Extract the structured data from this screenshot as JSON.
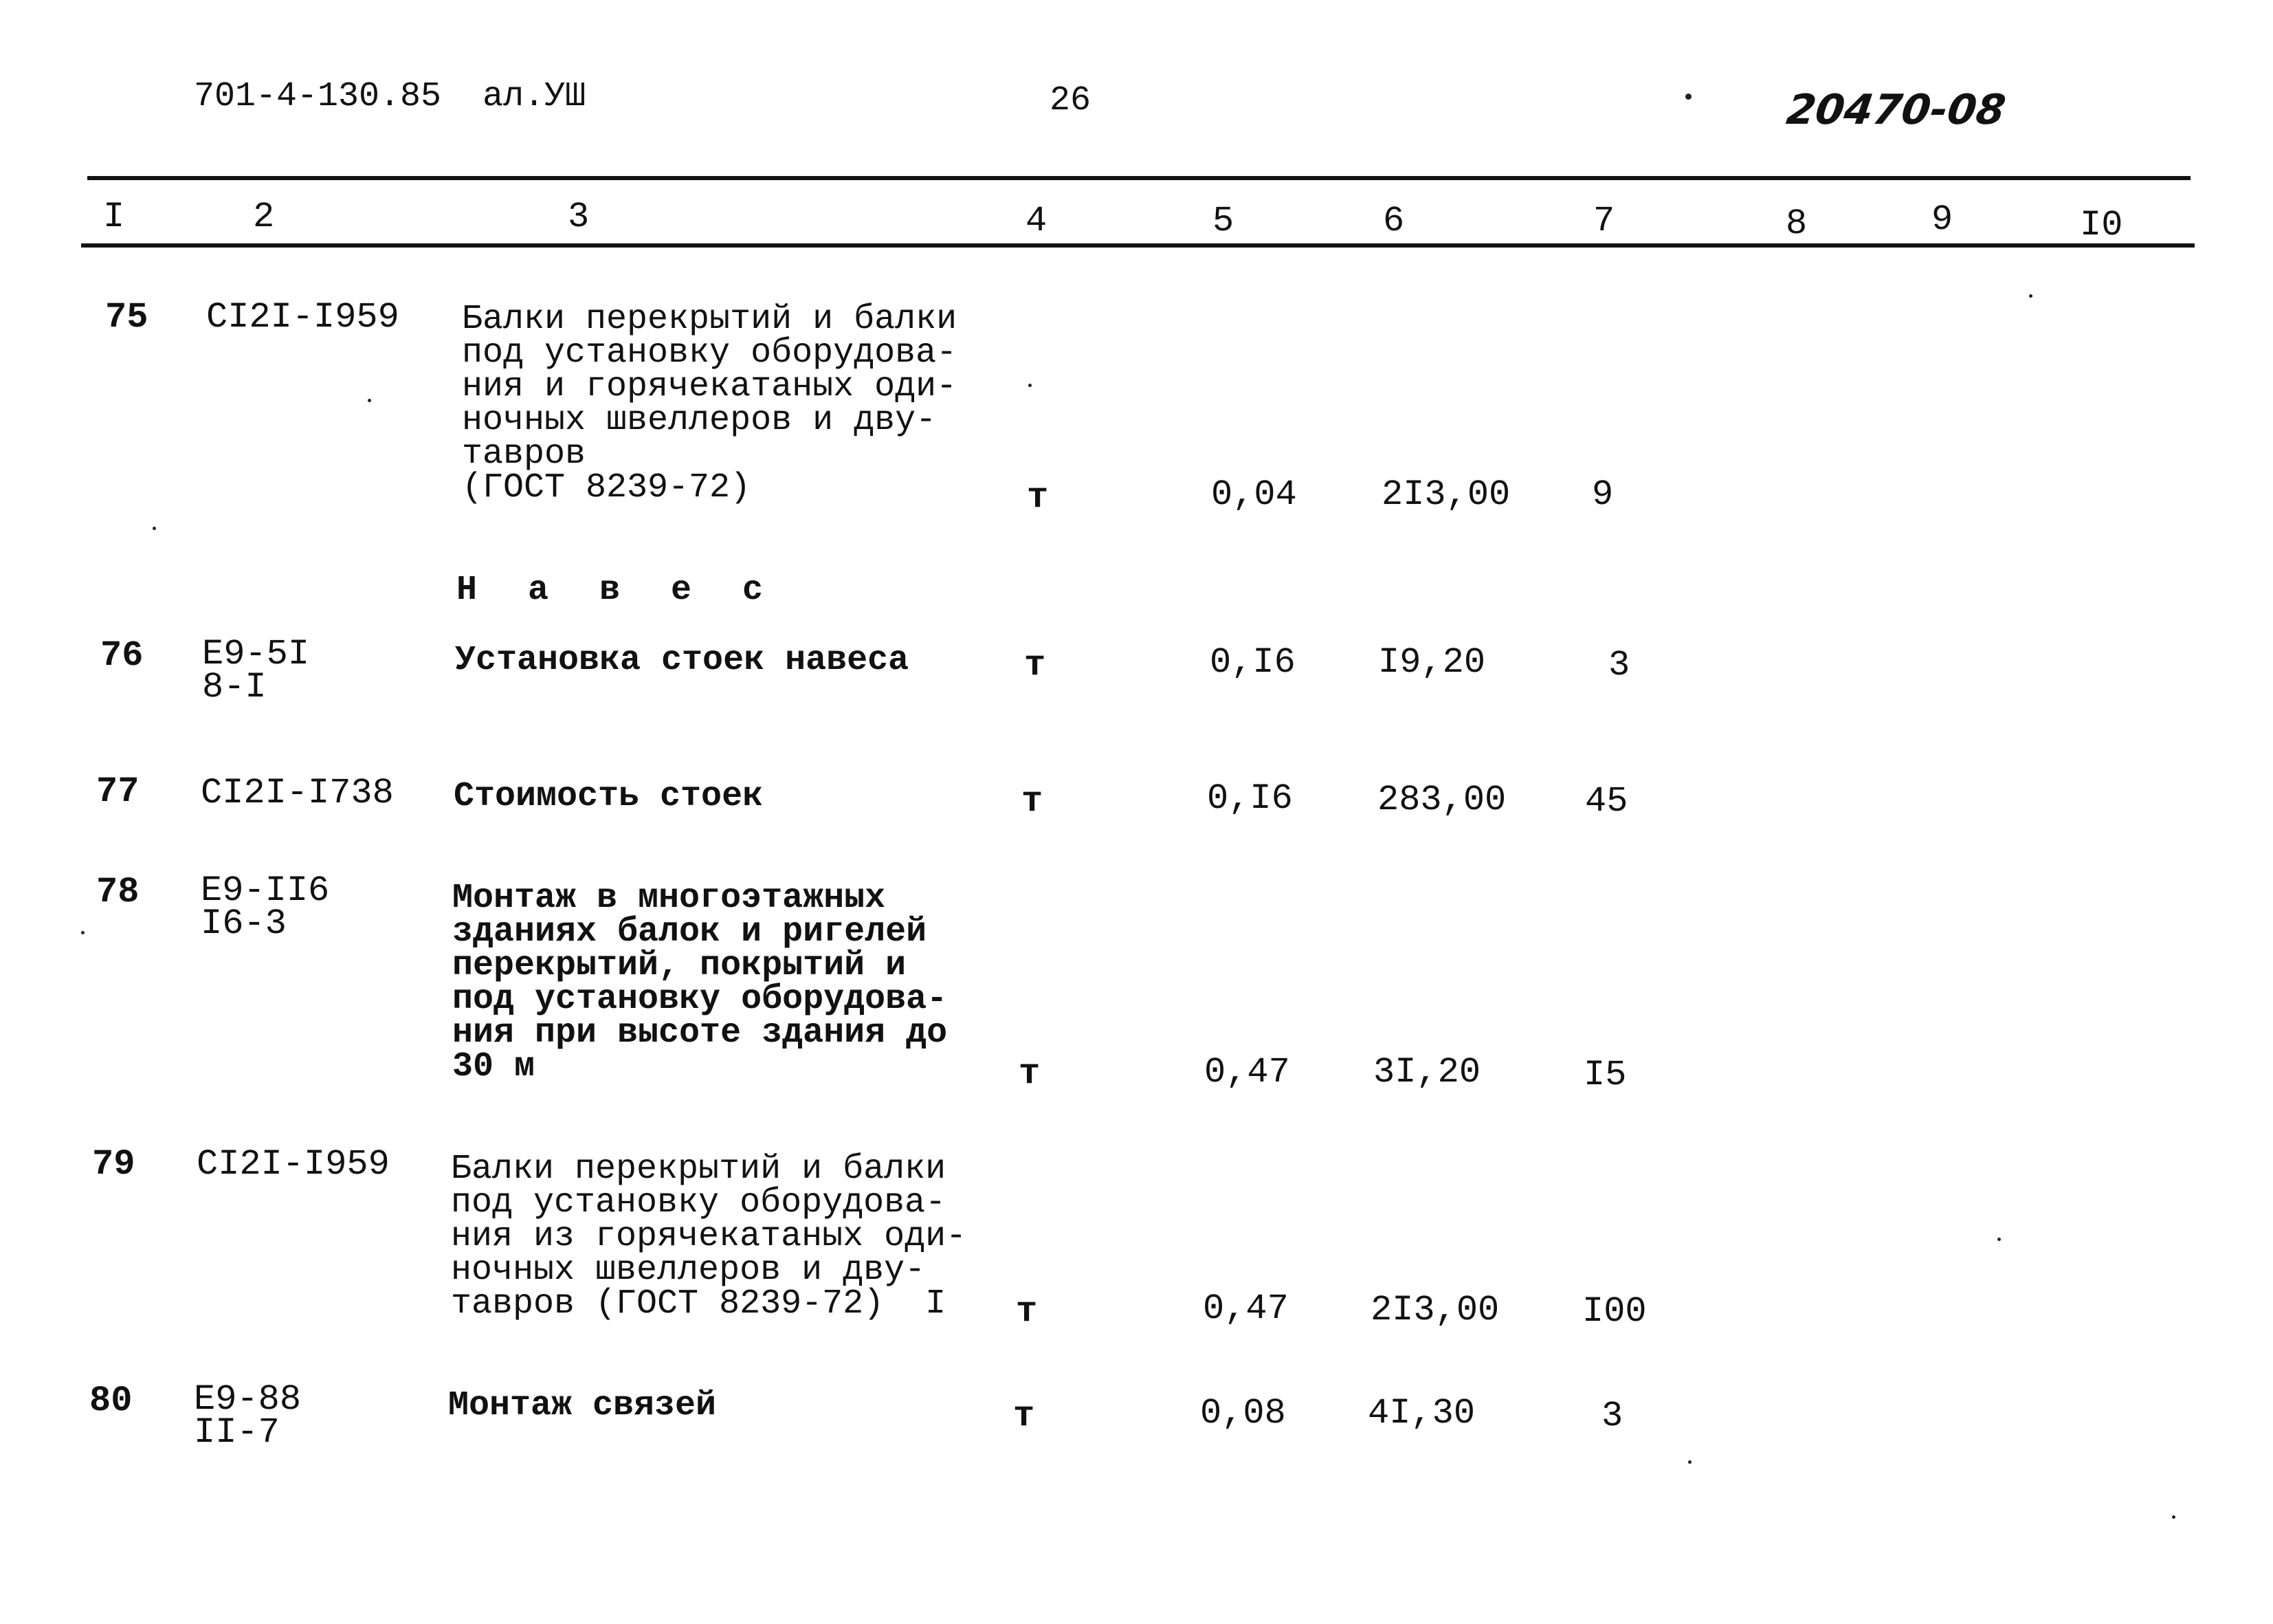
{
  "header": {
    "doc_code": "701-4-130.85  ал.УШ",
    "page_number": "26",
    "handwritten_number": "20470-08"
  },
  "columns": [
    "I",
    "2",
    "3",
    "4",
    "5",
    "6",
    "7",
    "8",
    "9",
    "I0"
  ],
  "section_title": "Н а в е с",
  "rows": [
    {
      "no": "75",
      "code": "CI2I-I959",
      "description": "Балки перекрытий и балки\nпод установку оборудова-\nния и горячекатаных оди-\nночных швеллеров и дву-\nтавров\n(ГОСТ 8239-72)",
      "unit": "т",
      "qty": "0,04",
      "price": "2I3,00",
      "col7": "9"
    },
    {
      "no": "76",
      "code": "Е9-5I\n8-I",
      "description": "Установка стоек навеса",
      "unit": "т",
      "qty": "0,I6",
      "price": "I9,20",
      "col7": "3"
    },
    {
      "no": "77",
      "code": "CI2I-I738",
      "description": "Стоимость стоек",
      "unit": "т",
      "qty": "0,I6",
      "price": "283,00",
      "col7": "45"
    },
    {
      "no": "78",
      "code": "Е9-II6\nI6-3",
      "description": "Монтаж в многоэтажных\nзданиях балок и ригелей\nперекрытий, покрытий и\nпод установку оборудова-\nния при высоте здания до\n30 м",
      "unit": "т",
      "qty": "0,47",
      "price": "3I,20",
      "col7": "I5"
    },
    {
      "no": "79",
      "code": "CI2I-I959",
      "description": "Балки перекрытий и балки\nпод установку оборудова-\nния из горячекатаных оди-\nночных швеллеров и дву-\nтавров (ГОСТ 8239-72)  I",
      "unit": "т",
      "qty": "0,47",
      "price": "2I3,00",
      "col7": "I00"
    },
    {
      "no": "80",
      "code": "Е9-88\nII-7",
      "description": "Монтаж связей",
      "unit": "т",
      "qty": "0,08",
      "price": "4I,30",
      "col7": "3"
    }
  ]
}
